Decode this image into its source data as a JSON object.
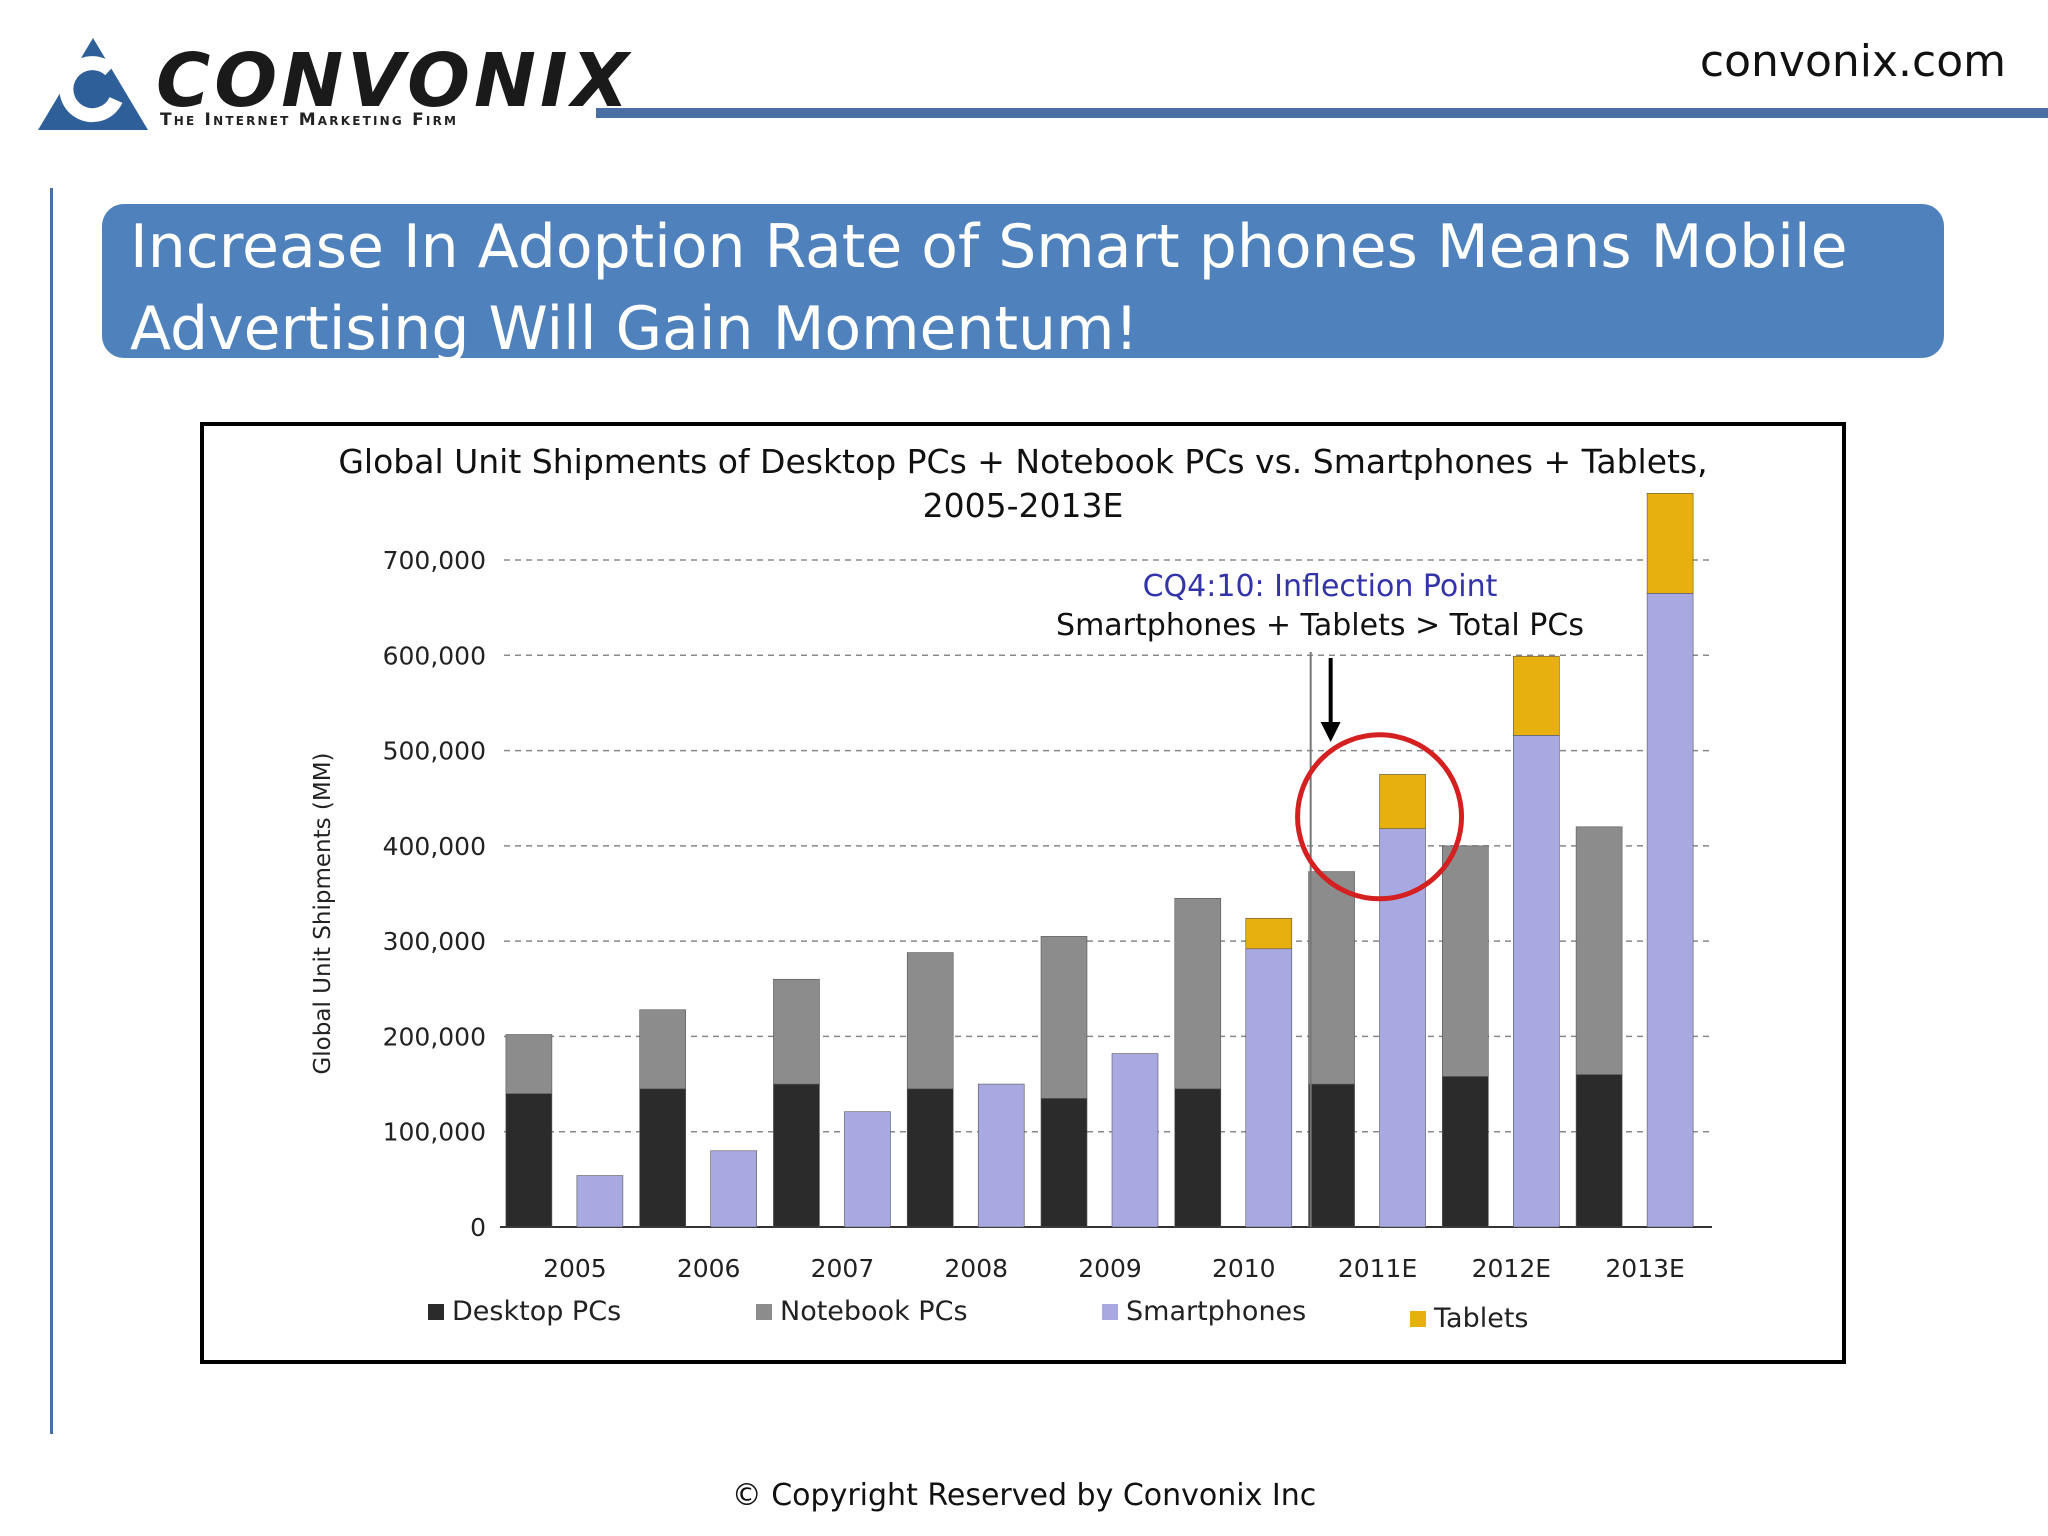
{
  "header": {
    "logo_name": "CONVONIX",
    "logo_tagline": "The Internet Marketing Firm",
    "site_url": "convonix.com",
    "accent_color": "#4f81bd"
  },
  "slide": {
    "title_line1": "Increase In Adoption Rate of Smart phones Means Mobile",
    "title_line2": "Advertising Will Gain Momentum!"
  },
  "footer": {
    "copyright": "© Copyright Reserved by Convonix Inc"
  },
  "chart_data": {
    "type": "bar",
    "title_line1": "Global Unit Shipments of Desktop PCs + Notebook PCs vs. Smartphones + Tablets,",
    "title_line2": "2005-2013E",
    "ylabel": "Global Unit Shipments (MM)",
    "xlabel": "",
    "ylim": [
      0,
      700000
    ],
    "yticks": [
      0,
      100000,
      200000,
      300000,
      400000,
      500000,
      600000,
      700000
    ],
    "ytick_labels": [
      "0",
      "100,000",
      "200,000",
      "300,000",
      "400,000",
      "500,000",
      "600,000",
      "700,000"
    ],
    "grid": true,
    "legend_position": "bottom",
    "categories": [
      "2005",
      "2006",
      "2007",
      "2008",
      "2009",
      "2010",
      "2011E",
      "2012E",
      "2013E"
    ],
    "stacks": [
      {
        "name": "PCs",
        "series": [
          {
            "name": "Desktop PCs",
            "color": "#2b2b2b",
            "values": [
              140000,
              145000,
              150000,
              145000,
              135000,
              145000,
              150000,
              158000,
              160000
            ]
          },
          {
            "name": "Notebook PCs",
            "color": "#8c8c8c",
            "values": [
              62000,
              83000,
              110000,
              143000,
              170000,
              200000,
              223000,
              242000,
              260000
            ]
          }
        ]
      },
      {
        "name": "Smartphones + Tablets",
        "series": [
          {
            "name": "Smartphones",
            "color": "#a9a9e2",
            "values": [
              54000,
              80000,
              121000,
              150000,
              182000,
              292000,
              418000,
              516000,
              665000
            ]
          },
          {
            "name": "Tablets",
            "color": "#e8b00f",
            "values": [
              0,
              0,
              0,
              0,
              0,
              32000,
              57000,
              83000,
              105000
            ]
          }
        ]
      }
    ],
    "annotation": {
      "line1": "CQ4:10: Inflection Point",
      "line2": "Smartphones + Tablets > Total PCs",
      "highlight_category": "2011E"
    }
  }
}
